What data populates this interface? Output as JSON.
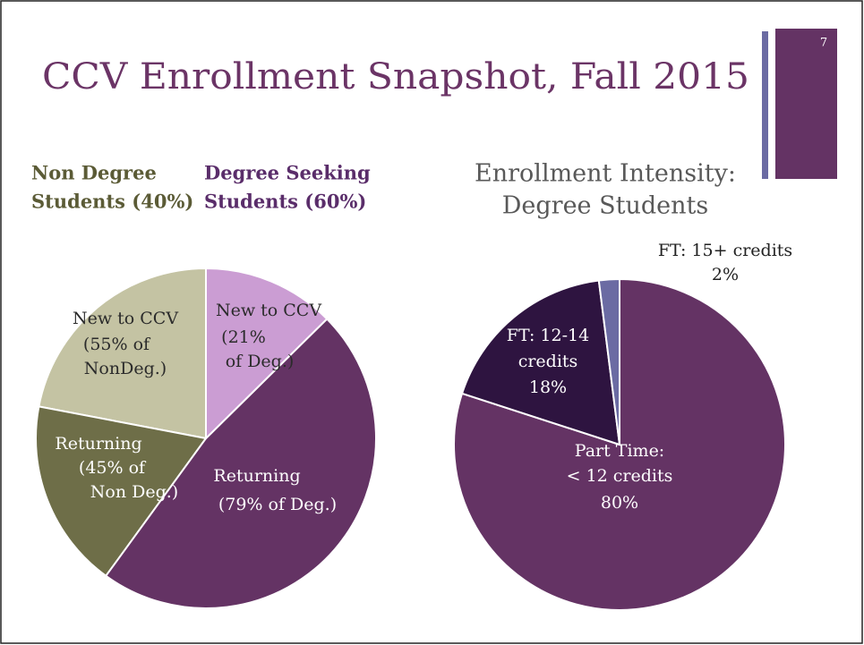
{
  "slide": {
    "title": "CCV Enrollment Snapshot, Fall 2015",
    "page_number": "7"
  },
  "chart_data": [
    {
      "type": "nested_pie",
      "groups": [
        {
          "name": [
            "Non Degree",
            "Students (40%)"
          ],
          "share": 40,
          "color": "#5b5b36",
          "slices": [
            {
              "label": [
                "New to CCV",
                "(55% of",
                "NonDeg.)"
              ],
              "value": 55,
              "color": "#c4c3a3",
              "text_color": "#2b2b2b"
            },
            {
              "label": [
                "Returning",
                "(45% of",
                "Non Deg.)"
              ],
              "value": 45,
              "color": "#6e6e48",
              "text_color": "#ffffff"
            }
          ]
        },
        {
          "name": [
            "Degree Seeking",
            "Students (60%)"
          ],
          "share": 60,
          "color": "#5a2d6a",
          "slices": [
            {
              "label": [
                "Returning",
                "(79% of Deg.)"
              ],
              "value": 79,
              "color": "#643364",
              "text_color": "#ffffff"
            },
            {
              "label": [
                "New to CCV",
                "(21%",
                "of Deg.)"
              ],
              "value": 21,
              "color": "#cb9dd3",
              "text_color": "#2b2b2b"
            }
          ]
        }
      ]
    },
    {
      "type": "pie",
      "title": [
        "Enrollment Intensity:",
        "Degree Students"
      ],
      "categories": [
        [
          "Part Time:",
          "< 12 credits"
        ],
        [
          "FT: 12-14",
          "credits"
        ],
        [
          "FT: 15+ credits"
        ]
      ],
      "values": [
        80,
        18,
        2
      ],
      "value_labels": [
        "80%",
        "18%",
        "2%"
      ],
      "colors": [
        "#643364",
        "#2e1440",
        "#6b6ba3"
      ]
    }
  ]
}
